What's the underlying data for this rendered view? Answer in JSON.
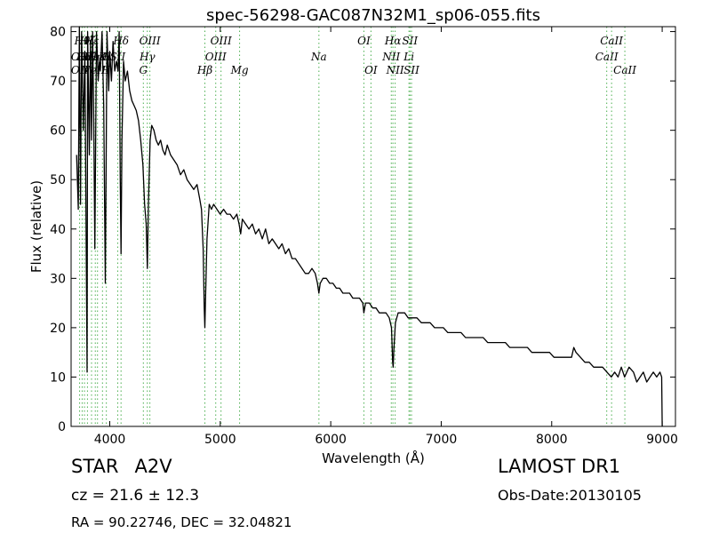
{
  "chart_data": {
    "type": "line",
    "title": "spec-56298-GAC087N32M1_sp06-055.fits",
    "xlabel": "Wavelength (Å)",
    "ylabel": "Flux (relative)",
    "xlim": [
      3650,
      9120
    ],
    "ylim": [
      0,
      81
    ],
    "xticks": [
      4000,
      5000,
      6000,
      7000,
      8000,
      9000
    ],
    "yticks": [
      0,
      10,
      20,
      30,
      40,
      50,
      60,
      70,
      80
    ],
    "grid": false,
    "line_color": "#000000",
    "marker_color": "#4caf50",
    "series": [
      {
        "points": [
          [
            3700,
            55
          ],
          [
            3715,
            44
          ],
          [
            3725,
            82
          ],
          [
            3735,
            45
          ],
          [
            3745,
            80
          ],
          [
            3760,
            60
          ],
          [
            3775,
            76
          ],
          [
            3785,
            42
          ],
          [
            3795,
            11
          ],
          [
            3800,
            80
          ],
          [
            3815,
            55
          ],
          [
            3825,
            78
          ],
          [
            3835,
            58
          ],
          [
            3845,
            80
          ],
          [
            3855,
            62
          ],
          [
            3865,
            36
          ],
          [
            3880,
            80
          ],
          [
            3895,
            70
          ],
          [
            3905,
            74
          ],
          [
            3915,
            72
          ],
          [
            3930,
            80
          ],
          [
            3945,
            65
          ],
          [
            3960,
            29
          ],
          [
            3975,
            80
          ],
          [
            3990,
            68
          ],
          [
            4000,
            76
          ],
          [
            4015,
            70
          ],
          [
            4030,
            78
          ],
          [
            4045,
            72
          ],
          [
            4060,
            74
          ],
          [
            4075,
            72
          ],
          [
            4085,
            80
          ],
          [
            4095,
            50
          ],
          [
            4102,
            35
          ],
          [
            4110,
            58
          ],
          [
            4125,
            74
          ],
          [
            4140,
            70
          ],
          [
            4160,
            72
          ],
          [
            4180,
            68
          ],
          [
            4200,
            66
          ],
          [
            4220,
            65
          ],
          [
            4240,
            64
          ],
          [
            4260,
            62
          ],
          [
            4280,
            58
          ],
          [
            4300,
            53
          ],
          [
            4315,
            45
          ],
          [
            4330,
            41
          ],
          [
            4340,
            32
          ],
          [
            4350,
            45
          ],
          [
            4365,
            58
          ],
          [
            4380,
            61
          ],
          [
            4400,
            60
          ],
          [
            4420,
            58
          ],
          [
            4440,
            57
          ],
          [
            4460,
            58
          ],
          [
            4480,
            56
          ],
          [
            4500,
            55
          ],
          [
            4520,
            57
          ],
          [
            4550,
            55
          ],
          [
            4580,
            54
          ],
          [
            4610,
            53
          ],
          [
            4640,
            51
          ],
          [
            4670,
            52
          ],
          [
            4700,
            50
          ],
          [
            4730,
            49
          ],
          [
            4760,
            48
          ],
          [
            4790,
            49
          ],
          [
            4815,
            46
          ],
          [
            4830,
            44
          ],
          [
            4845,
            36
          ],
          [
            4855,
            24
          ],
          [
            4861,
            20
          ],
          [
            4868,
            27
          ],
          [
            4880,
            38
          ],
          [
            4900,
            45
          ],
          [
            4920,
            44
          ],
          [
            4940,
            45
          ],
          [
            4970,
            44
          ],
          [
            5000,
            43
          ],
          [
            5030,
            44
          ],
          [
            5060,
            43
          ],
          [
            5090,
            43
          ],
          [
            5120,
            42
          ],
          [
            5150,
            43
          ],
          [
            5170,
            41
          ],
          [
            5185,
            39
          ],
          [
            5200,
            42
          ],
          [
            5230,
            41
          ],
          [
            5260,
            40
          ],
          [
            5290,
            41
          ],
          [
            5320,
            39
          ],
          [
            5350,
            40
          ],
          [
            5380,
            38
          ],
          [
            5410,
            40
          ],
          [
            5440,
            37
          ],
          [
            5470,
            38
          ],
          [
            5500,
            37
          ],
          [
            5530,
            36
          ],
          [
            5560,
            37
          ],
          [
            5590,
            35
          ],
          [
            5620,
            36
          ],
          [
            5650,
            34
          ],
          [
            5680,
            34
          ],
          [
            5710,
            33
          ],
          [
            5740,
            32
          ],
          [
            5770,
            31
          ],
          [
            5800,
            31
          ],
          [
            5830,
            32
          ],
          [
            5860,
            31
          ],
          [
            5880,
            29
          ],
          [
            5893,
            27
          ],
          [
            5905,
            29
          ],
          [
            5930,
            30
          ],
          [
            5960,
            30
          ],
          [
            5990,
            29
          ],
          [
            6020,
            29
          ],
          [
            6050,
            28
          ],
          [
            6080,
            28
          ],
          [
            6110,
            27
          ],
          [
            6140,
            27
          ],
          [
            6170,
            27
          ],
          [
            6200,
            26
          ],
          [
            6230,
            26
          ],
          [
            6260,
            26
          ],
          [
            6290,
            25
          ],
          [
            6300,
            23
          ],
          [
            6315,
            25
          ],
          [
            6350,
            25
          ],
          [
            6380,
            24
          ],
          [
            6410,
            24
          ],
          [
            6440,
            23
          ],
          [
            6470,
            23
          ],
          [
            6500,
            23
          ],
          [
            6530,
            22
          ],
          [
            6550,
            20
          ],
          [
            6560,
            13
          ],
          [
            6565,
            12
          ],
          [
            6570,
            15
          ],
          [
            6585,
            21
          ],
          [
            6610,
            23
          ],
          [
            6640,
            23
          ],
          [
            6670,
            23
          ],
          [
            6700,
            22
          ],
          [
            6740,
            22
          ],
          [
            6780,
            22
          ],
          [
            6820,
            21
          ],
          [
            6860,
            21
          ],
          [
            6900,
            21
          ],
          [
            6940,
            20
          ],
          [
            6980,
            20
          ],
          [
            7020,
            20
          ],
          [
            7060,
            19
          ],
          [
            7100,
            19
          ],
          [
            7140,
            19
          ],
          [
            7180,
            19
          ],
          [
            7220,
            18
          ],
          [
            7260,
            18
          ],
          [
            7300,
            18
          ],
          [
            7340,
            18
          ],
          [
            7380,
            18
          ],
          [
            7420,
            17
          ],
          [
            7460,
            17
          ],
          [
            7500,
            17
          ],
          [
            7540,
            17
          ],
          [
            7580,
            17
          ],
          [
            7620,
            16
          ],
          [
            7660,
            16
          ],
          [
            7700,
            16
          ],
          [
            7740,
            16
          ],
          [
            7780,
            16
          ],
          [
            7820,
            15
          ],
          [
            7860,
            15
          ],
          [
            7900,
            15
          ],
          [
            7940,
            15
          ],
          [
            7980,
            15
          ],
          [
            8020,
            14
          ],
          [
            8060,
            14
          ],
          [
            8100,
            14
          ],
          [
            8140,
            14
          ],
          [
            8180,
            14
          ],
          [
            8200,
            16
          ],
          [
            8220,
            15
          ],
          [
            8260,
            14
          ],
          [
            8300,
            13
          ],
          [
            8340,
            13
          ],
          [
            8380,
            12
          ],
          [
            8420,
            12
          ],
          [
            8460,
            12
          ],
          [
            8500,
            11
          ],
          [
            8540,
            10
          ],
          [
            8570,
            11
          ],
          [
            8600,
            10
          ],
          [
            8630,
            12
          ],
          [
            8660,
            10
          ],
          [
            8700,
            12
          ],
          [
            8740,
            11
          ],
          [
            8770,
            9
          ],
          [
            8800,
            10
          ],
          [
            8830,
            11
          ],
          [
            8860,
            9
          ],
          [
            8890,
            10
          ],
          [
            8920,
            11
          ],
          [
            8950,
            10
          ],
          [
            8980,
            11
          ],
          [
            8995,
            10
          ],
          [
            9000,
            0
          ]
        ]
      }
    ],
    "line_markers": [
      {
        "x": 3727,
        "labels": [
          {
            "text": "OII",
            "row": 2
          },
          {
            "text": "OII",
            "row": 4
          }
        ]
      },
      {
        "x": 3750,
        "labels": [
          {
            "text": "Hθ",
            "row": 1
          }
        ]
      },
      {
        "x": 3771,
        "labels": [
          {
            "text": "Hη",
            "row": 2
          }
        ]
      },
      {
        "x": 3798,
        "labels": [
          {
            "text": "Hζ",
            "row": 1
          },
          {
            "text": "Hζ",
            "row": 2
          }
        ]
      },
      {
        "x": 3835,
        "labels": [
          {
            "text": "Hε",
            "row": 1
          },
          {
            "text": "Hε",
            "row": 2
          }
        ]
      },
      {
        "x": 3869,
        "labels": [
          {
            "text": "NeIII",
            "row": 4
          }
        ]
      },
      {
        "x": 3889,
        "labels": [
          {
            "text": "HeI",
            "row": 2
          }
        ]
      },
      {
        "x": 3934,
        "labels": [
          {
            "text": "K",
            "row": 2
          }
        ]
      },
      {
        "x": 3969,
        "labels": [
          {
            "text": "H",
            "row": 2
          },
          {
            "text": "H",
            "row": 4
          }
        ]
      },
      {
        "x": 4072,
        "labels": [
          {
            "text": "SII",
            "row": 2
          }
        ]
      },
      {
        "x": 4102,
        "labels": [
          {
            "text": "Hδ",
            "row": 1
          }
        ]
      },
      {
        "x": 4304,
        "labels": [
          {
            "text": "G",
            "row": 4
          }
        ]
      },
      {
        "x": 4340,
        "labels": [
          {
            "text": "Hγ",
            "row": 2
          }
        ]
      },
      {
        "x": 4363,
        "labels": [
          {
            "text": "OIII",
            "row": 1
          }
        ]
      },
      {
        "x": 4861,
        "labels": [
          {
            "text": "Hβ",
            "row": 4
          }
        ]
      },
      {
        "x": 4959,
        "labels": [
          {
            "text": "OIII",
            "row": 3
          }
        ]
      },
      {
        "x": 5007,
        "labels": [
          {
            "text": "OIII",
            "row": 1
          }
        ]
      },
      {
        "x": 5175,
        "labels": [
          {
            "text": "Mg",
            "row": 4
          }
        ]
      },
      {
        "x": 5893,
        "labels": [
          {
            "text": "Na",
            "row": 3
          }
        ]
      },
      {
        "x": 6300,
        "labels": [
          {
            "text": "OI",
            "row": 1
          }
        ]
      },
      {
        "x": 6364,
        "labels": [
          {
            "text": "OI",
            "row": 4
          }
        ]
      },
      {
        "x": 6548,
        "labels": [
          {
            "text": "NII",
            "row": 3
          }
        ]
      },
      {
        "x": 6563,
        "labels": [
          {
            "text": "Hα",
            "row": 1
          }
        ]
      },
      {
        "x": 6583,
        "labels": [
          {
            "text": "NII",
            "row": 4
          }
        ]
      },
      {
        "x": 6708,
        "labels": [
          {
            "text": "Li",
            "row": 3
          }
        ]
      },
      {
        "x": 6717,
        "labels": [
          {
            "text": "SII",
            "row": 1
          }
        ]
      },
      {
        "x": 6731,
        "labels": [
          {
            "text": "SII",
            "row": 4
          }
        ]
      },
      {
        "x": 8498,
        "labels": [
          {
            "text": "CaII",
            "row": 3
          }
        ]
      },
      {
        "x": 8542,
        "labels": [
          {
            "text": "CaII",
            "row": 1
          }
        ]
      },
      {
        "x": 8662,
        "labels": [
          {
            "text": "CaII",
            "row": 4
          }
        ]
      }
    ]
  },
  "info": {
    "class_label": "STAR",
    "subclass": "A2V",
    "cz_text": "cz = 21.6  ± 12.3",
    "radec_text": "RA = 90.22746, DEC = 32.04821",
    "survey": "LAMOST DR1",
    "obs_date": "Obs-Date:20130105"
  }
}
